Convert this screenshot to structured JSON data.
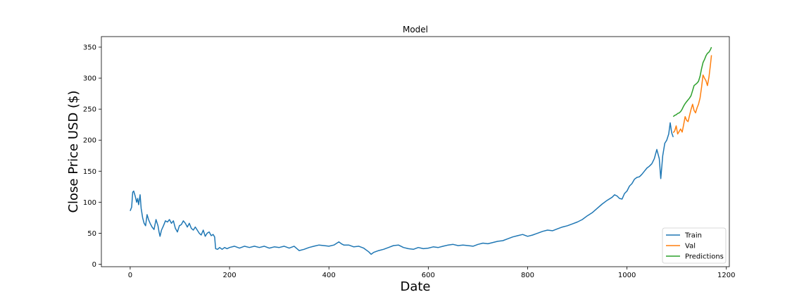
{
  "chart_data": {
    "type": "line",
    "title": "Model",
    "xlabel": "Date",
    "ylabel": "Close Price USD ($)",
    "xlim": [
      -58,
      1206
    ],
    "ylim": [
      -4,
      367
    ],
    "xticks": [
      0,
      200,
      400,
      600,
      800,
      1000,
      1200
    ],
    "yticks": [
      0,
      50,
      100,
      150,
      200,
      250,
      300,
      350
    ],
    "grid": false,
    "legend_position": "bottom-right",
    "series": [
      {
        "name": "Train",
        "color": "#1f77b4",
        "points": [
          [
            0,
            86
          ],
          [
            3,
            92
          ],
          [
            5,
            116
          ],
          [
            7,
            118
          ],
          [
            10,
            110
          ],
          [
            13,
            100
          ],
          [
            15,
            106
          ],
          [
            17,
            96
          ],
          [
            20,
            112
          ],
          [
            22,
            90
          ],
          [
            25,
            75
          ],
          [
            28,
            66
          ],
          [
            31,
            62
          ],
          [
            34,
            80
          ],
          [
            37,
            72
          ],
          [
            40,
            66
          ],
          [
            44,
            60
          ],
          [
            48,
            56
          ],
          [
            52,
            72
          ],
          [
            56,
            62
          ],
          [
            58,
            52
          ],
          [
            60,
            45
          ],
          [
            63,
            55
          ],
          [
            67,
            62
          ],
          [
            71,
            70
          ],
          [
            75,
            68
          ],
          [
            79,
            72
          ],
          [
            83,
            66
          ],
          [
            87,
            70
          ],
          [
            91,
            58
          ],
          [
            95,
            52
          ],
          [
            99,
            62
          ],
          [
            103,
            64
          ],
          [
            107,
            70
          ],
          [
            111,
            66
          ],
          [
            115,
            60
          ],
          [
            119,
            66
          ],
          [
            123,
            58
          ],
          [
            127,
            55
          ],
          [
            131,
            60
          ],
          [
            135,
            55
          ],
          [
            139,
            50
          ],
          [
            143,
            47
          ],
          [
            147,
            55
          ],
          [
            151,
            45
          ],
          [
            155,
            50
          ],
          [
            159,
            52
          ],
          [
            163,
            46
          ],
          [
            167,
            48
          ],
          [
            170,
            44
          ],
          [
            172,
            25
          ],
          [
            176,
            24
          ],
          [
            180,
            27
          ],
          [
            185,
            24
          ],
          [
            190,
            27
          ],
          [
            195,
            25
          ],
          [
            200,
            27
          ],
          [
            210,
            29
          ],
          [
            220,
            26
          ],
          [
            230,
            29
          ],
          [
            240,
            27
          ],
          [
            250,
            29
          ],
          [
            260,
            27
          ],
          [
            270,
            29
          ],
          [
            280,
            26
          ],
          [
            290,
            28
          ],
          [
            300,
            27
          ],
          [
            310,
            29
          ],
          [
            320,
            26
          ],
          [
            330,
            29
          ],
          [
            340,
            22
          ],
          [
            350,
            24
          ],
          [
            360,
            27
          ],
          [
            370,
            29
          ],
          [
            380,
            31
          ],
          [
            390,
            30
          ],
          [
            400,
            29
          ],
          [
            410,
            31
          ],
          [
            420,
            36
          ],
          [
            425,
            33
          ],
          [
            430,
            31
          ],
          [
            440,
            31
          ],
          [
            450,
            28
          ],
          [
            460,
            29
          ],
          [
            470,
            26
          ],
          [
            480,
            20
          ],
          [
            485,
            16
          ],
          [
            490,
            19
          ],
          [
            500,
            22
          ],
          [
            510,
            24
          ],
          [
            520,
            27
          ],
          [
            530,
            30
          ],
          [
            540,
            31
          ],
          [
            550,
            27
          ],
          [
            560,
            25
          ],
          [
            570,
            24
          ],
          [
            580,
            27
          ],
          [
            590,
            25
          ],
          [
            600,
            26
          ],
          [
            610,
            28
          ],
          [
            620,
            27
          ],
          [
            630,
            29
          ],
          [
            640,
            31
          ],
          [
            650,
            32
          ],
          [
            660,
            30
          ],
          [
            670,
            31
          ],
          [
            680,
            30
          ],
          [
            690,
            29
          ],
          [
            700,
            32
          ],
          [
            710,
            34
          ],
          [
            720,
            33
          ],
          [
            730,
            35
          ],
          [
            740,
            37
          ],
          [
            750,
            38
          ],
          [
            760,
            41
          ],
          [
            770,
            44
          ],
          [
            780,
            46
          ],
          [
            790,
            48
          ],
          [
            800,
            45
          ],
          [
            810,
            47
          ],
          [
            820,
            50
          ],
          [
            830,
            53
          ],
          [
            840,
            55
          ],
          [
            850,
            54
          ],
          [
            860,
            57
          ],
          [
            870,
            60
          ],
          [
            880,
            62
          ],
          [
            890,
            65
          ],
          [
            900,
            68
          ],
          [
            910,
            72
          ],
          [
            920,
            78
          ],
          [
            930,
            83
          ],
          [
            940,
            90
          ],
          [
            950,
            97
          ],
          [
            960,
            103
          ],
          [
            970,
            108
          ],
          [
            975,
            112
          ],
          [
            980,
            110
          ],
          [
            985,
            106
          ],
          [
            990,
            105
          ],
          [
            995,
            114
          ],
          [
            1000,
            118
          ],
          [
            1005,
            126
          ],
          [
            1010,
            130
          ],
          [
            1015,
            137
          ],
          [
            1020,
            140
          ],
          [
            1025,
            141
          ],
          [
            1030,
            145
          ],
          [
            1035,
            150
          ],
          [
            1040,
            155
          ],
          [
            1045,
            158
          ],
          [
            1050,
            162
          ],
          [
            1055,
            170
          ],
          [
            1060,
            185
          ],
          [
            1065,
            170
          ],
          [
            1068,
            138
          ],
          [
            1072,
            175
          ],
          [
            1076,
            195
          ],
          [
            1080,
            200
          ],
          [
            1084,
            210
          ],
          [
            1087,
            228
          ],
          [
            1090,
            212
          ],
          [
            1093,
            205
          ]
        ]
      },
      {
        "name": "Val",
        "color": "#ff7f0e",
        "points": [
          [
            1093,
            212
          ],
          [
            1096,
            215
          ],
          [
            1099,
            223
          ],
          [
            1102,
            210
          ],
          [
            1105,
            214
          ],
          [
            1108,
            218
          ],
          [
            1111,
            213
          ],
          [
            1114,
            225
          ],
          [
            1117,
            238
          ],
          [
            1120,
            232
          ],
          [
            1123,
            230
          ],
          [
            1126,
            240
          ],
          [
            1129,
            250
          ],
          [
            1132,
            258
          ],
          [
            1135,
            248
          ],
          [
            1138,
            244
          ],
          [
            1141,
            252
          ],
          [
            1144,
            258
          ],
          [
            1147,
            268
          ],
          [
            1150,
            285
          ],
          [
            1153,
            305
          ],
          [
            1156,
            300
          ],
          [
            1159,
            296
          ],
          [
            1162,
            288
          ],
          [
            1165,
            302
          ],
          [
            1168,
            322
          ],
          [
            1170,
            337
          ]
        ]
      },
      {
        "name": "Predictions",
        "color": "#2ca02c",
        "points": [
          [
            1093,
            238
          ],
          [
            1096,
            240
          ],
          [
            1099,
            241
          ],
          [
            1102,
            243
          ],
          [
            1105,
            244
          ],
          [
            1108,
            246
          ],
          [
            1111,
            250
          ],
          [
            1114,
            255
          ],
          [
            1117,
            259
          ],
          [
            1120,
            262
          ],
          [
            1123,
            265
          ],
          [
            1126,
            268
          ],
          [
            1129,
            272
          ],
          [
            1132,
            280
          ],
          [
            1135,
            288
          ],
          [
            1138,
            290
          ],
          [
            1141,
            292
          ],
          [
            1144,
            295
          ],
          [
            1147,
            303
          ],
          [
            1150,
            315
          ],
          [
            1153,
            325
          ],
          [
            1156,
            330
          ],
          [
            1159,
            336
          ],
          [
            1162,
            340
          ],
          [
            1165,
            342
          ],
          [
            1168,
            346
          ],
          [
            1170,
            350
          ]
        ]
      }
    ]
  }
}
